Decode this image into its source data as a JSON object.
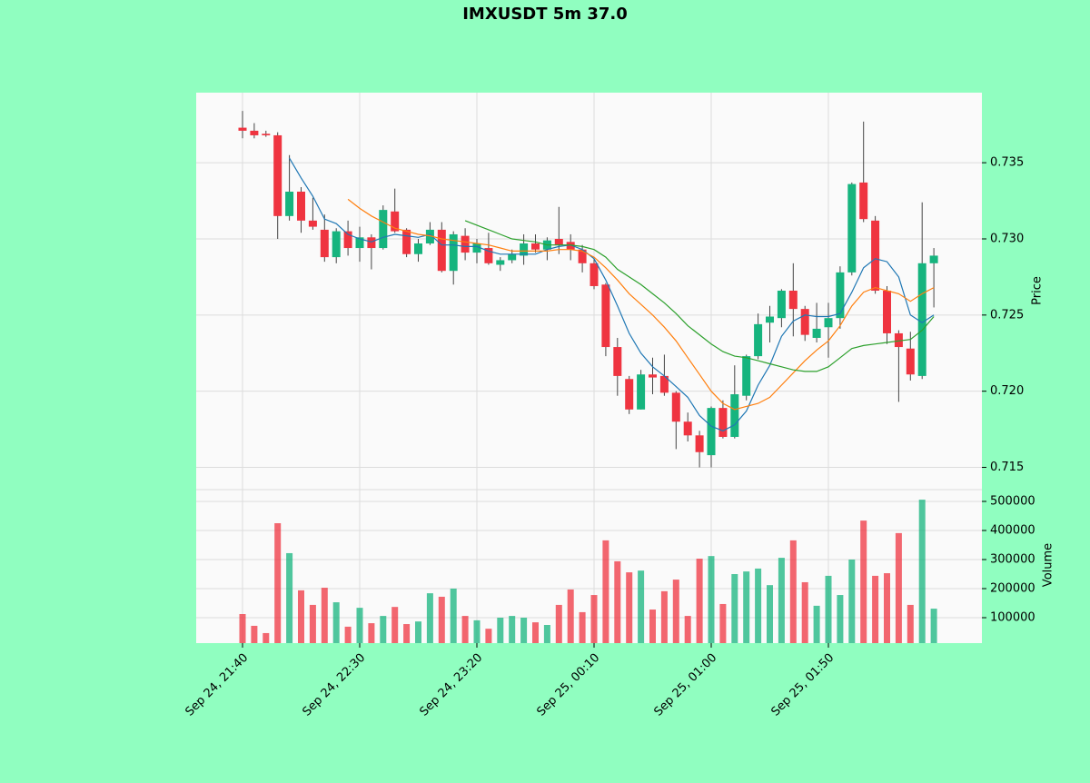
{
  "chart_data": {
    "type": "candlestick",
    "title": "IMXUSDT 5m 37.0",
    "ylabel": "Price",
    "volume_label": "Volume",
    "up_color": "#16b47e",
    "down_color": "#ef3440",
    "categories": [
      "Sep 24, 21:40",
      null,
      null,
      null,
      null,
      null,
      null,
      null,
      null,
      null,
      "Sep 24, 22:30",
      null,
      null,
      null,
      null,
      null,
      null,
      null,
      null,
      null,
      "Sep 24, 23:20",
      null,
      null,
      null,
      null,
      null,
      null,
      null,
      null,
      null,
      "Sep 25, 00:10",
      null,
      null,
      null,
      null,
      null,
      null,
      null,
      null,
      null,
      "Sep 25, 01:00",
      null,
      null,
      null,
      null,
      null,
      null,
      null,
      null,
      null,
      "Sep 25, 01:50",
      null,
      null,
      null,
      null,
      null,
      null,
      null,
      null,
      null
    ],
    "open": [
      0.7373,
      0.7371,
      0.7369,
      0.7368,
      0.7315,
      0.7331,
      0.7312,
      0.7306,
      0.7288,
      0.7305,
      0.7294,
      0.7301,
      0.7294,
      0.7318,
      0.7306,
      0.729,
      0.7297,
      0.7306,
      0.7279,
      0.7302,
      0.7291,
      0.7294,
      0.7283,
      0.7286,
      0.7289,
      0.7297,
      0.7293,
      0.73,
      0.7298,
      0.7293,
      0.7284,
      0.727,
      0.7229,
      0.7208,
      0.7188,
      0.7211,
      0.721,
      0.7199,
      0.718,
      0.7171,
      0.7158,
      0.7189,
      0.717,
      0.7197,
      0.7223,
      0.7245,
      0.7248,
      0.7266,
      0.7254,
      0.7235,
      0.7242,
      0.7248,
      0.7278,
      0.7337,
      0.7312,
      0.7266,
      0.7238,
      0.7228,
      0.721,
      0.7284
    ],
    "high": [
      0.7384,
      0.7376,
      0.7371,
      0.737,
      0.7355,
      0.7334,
      0.7327,
      0.7316,
      0.7307,
      0.7312,
      0.7308,
      0.7303,
      0.7322,
      0.7333,
      0.7307,
      0.73,
      0.7311,
      0.7311,
      0.7305,
      0.7307,
      0.73,
      0.7304,
      0.7288,
      0.7293,
      0.7303,
      0.7303,
      0.7301,
      0.7321,
      0.7303,
      0.7296,
      0.7287,
      0.7271,
      0.7235,
      0.721,
      0.7214,
      0.7222,
      0.7224,
      0.72,
      0.7186,
      0.7174,
      0.719,
      0.7194,
      0.7217,
      0.7224,
      0.7251,
      0.7256,
      0.7267,
      0.7284,
      0.7256,
      0.7258,
      0.7258,
      0.7282,
      0.7337,
      0.7377,
      0.7315,
      0.7269,
      0.724,
      0.7239,
      0.7324,
      0.7294
    ],
    "low": [
      0.7366,
      0.7366,
      0.7367,
      0.73,
      0.7312,
      0.7304,
      0.7306,
      0.7285,
      0.7284,
      0.7289,
      0.7285,
      0.728,
      0.7293,
      0.7304,
      0.7288,
      0.7285,
      0.7296,
      0.7278,
      0.727,
      0.7286,
      0.7284,
      0.7283,
      0.7279,
      0.7284,
      0.7283,
      0.7291,
      0.7286,
      0.729,
      0.7286,
      0.7278,
      0.7267,
      0.7223,
      0.7197,
      0.7185,
      0.7188,
      0.7198,
      0.7197,
      0.7162,
      0.7167,
      0.715,
      0.715,
      0.7169,
      0.7169,
      0.7194,
      0.7221,
      0.7232,
      0.7242,
      0.7236,
      0.7233,
      0.7232,
      0.7222,
      0.7241,
      0.7276,
      0.7311,
      0.7264,
      0.7231,
      0.7193,
      0.7207,
      0.7208,
      0.7255
    ],
    "close": [
      0.7371,
      0.7368,
      0.7368,
      0.7315,
      0.7331,
      0.7312,
      0.7308,
      0.7288,
      0.7305,
      0.7294,
      0.7301,
      0.7294,
      0.7319,
      0.7305,
      0.729,
      0.7297,
      0.7306,
      0.7279,
      0.7303,
      0.7291,
      0.7297,
      0.7284,
      0.7286,
      0.729,
      0.7297,
      0.7293,
      0.7299,
      0.7296,
      0.7293,
      0.7284,
      0.7269,
      0.7229,
      0.721,
      0.7188,
      0.7211,
      0.7209,
      0.7199,
      0.718,
      0.7171,
      0.716,
      0.7189,
      0.717,
      0.7198,
      0.7223,
      0.7244,
      0.7249,
      0.7266,
      0.7254,
      0.7237,
      0.7241,
      0.7248,
      0.7278,
      0.7336,
      0.7313,
      0.7266,
      0.7238,
      0.7229,
      0.7211,
      0.7284,
      0.7289
    ],
    "volume": [
      112500,
      72000,
      47000,
      425000,
      322000,
      194000,
      144000,
      203000,
      153000,
      69000,
      134000,
      81000,
      106000,
      137000,
      78000,
      87000,
      184000,
      172000,
      200000,
      106000,
      91000,
      62000,
      100000,
      106000,
      100000,
      84000,
      75000,
      144000,
      197000,
      119000,
      178000,
      366000,
      294000,
      256000,
      262000,
      128000,
      191000,
      231000,
      106000,
      303000,
      312000,
      147000,
      250000,
      259000,
      269000,
      212000,
      306000,
      366000,
      222000,
      141000,
      244000,
      178000,
      300000,
      434000,
      244000,
      253000,
      391000,
      144000,
      506000,
      131000
    ],
    "series": [
      {
        "color": "#1f77b4",
        "values": [
          null,
          null,
          null,
          null,
          0.7353,
          0.734,
          0.7328,
          0.7313,
          0.731,
          0.7303,
          0.73,
          0.7298,
          0.7301,
          0.7303,
          0.7302,
          0.7301,
          0.7303,
          0.7296,
          0.7296,
          0.7295,
          0.7295,
          0.7292,
          0.729,
          0.729,
          0.729,
          0.729,
          0.7293,
          0.7295,
          0.7296,
          0.7293,
          0.7287,
          0.7273,
          0.7256,
          0.7238,
          0.7225,
          0.7216,
          0.721,
          0.7203,
          0.7196,
          0.7184,
          0.7177,
          0.7174,
          0.7178,
          0.7187,
          0.7204,
          0.7217,
          0.7236,
          0.7246,
          0.725,
          0.7249,
          0.7249,
          0.7251,
          0.7265,
          0.7281,
          0.7287,
          0.7285,
          0.7275,
          0.725,
          0.7245,
          0.725
        ]
      },
      {
        "color": "#ff7f0e",
        "values": [
          null,
          null,
          null,
          null,
          null,
          null,
          null,
          null,
          null,
          0.7326,
          0.732,
          0.7315,
          0.7311,
          0.7307,
          0.7305,
          0.7303,
          0.7302,
          0.73,
          0.7299,
          0.7298,
          0.7297,
          0.7296,
          0.7294,
          0.7292,
          0.7292,
          0.7292,
          0.7292,
          0.7293,
          0.7293,
          0.7292,
          0.7288,
          0.7281,
          0.7273,
          0.7264,
          0.7257,
          0.725,
          0.7242,
          0.7233,
          0.7222,
          0.7211,
          0.72,
          0.7192,
          0.7188,
          0.719,
          0.7192,
          0.7196,
          0.7204,
          0.7212,
          0.722,
          0.7227,
          0.7233,
          0.7243,
          0.7256,
          0.7265,
          0.7268,
          0.7266,
          0.7264,
          0.7259,
          0.7264,
          0.7268
        ]
      },
      {
        "color": "#2ca02c",
        "values": [
          null,
          null,
          null,
          null,
          null,
          null,
          null,
          null,
          null,
          null,
          null,
          null,
          null,
          null,
          null,
          null,
          null,
          null,
          null,
          0.7312,
          0.7309,
          0.7306,
          0.7303,
          0.73,
          0.7299,
          0.7298,
          0.7296,
          0.7296,
          0.7296,
          0.7295,
          0.7293,
          0.7288,
          0.728,
          0.7275,
          0.727,
          0.7264,
          0.7258,
          0.7251,
          0.7243,
          0.7237,
          0.7231,
          0.7226,
          0.7223,
          0.7222,
          0.722,
          0.7218,
          0.7216,
          0.7214,
          0.7213,
          0.7213,
          0.7216,
          0.7222,
          0.7228,
          0.723,
          0.7231,
          0.7232,
          0.7233,
          0.7234,
          0.724,
          0.7249
        ]
      }
    ],
    "ylim": [
      0.7136,
      0.7396
    ],
    "yticks": [
      0.715,
      {
        "value": 0.72,
        "label": "0.720"
      },
      0.725,
      {
        "value": 0.73,
        "label": "0.730"
      },
      0.735
    ],
    "volume_ylim": [
      12500,
      537500
    ],
    "volume_yticks": [
      100000,
      200000,
      300000,
      400000,
      500000
    ],
    "grid": true
  }
}
